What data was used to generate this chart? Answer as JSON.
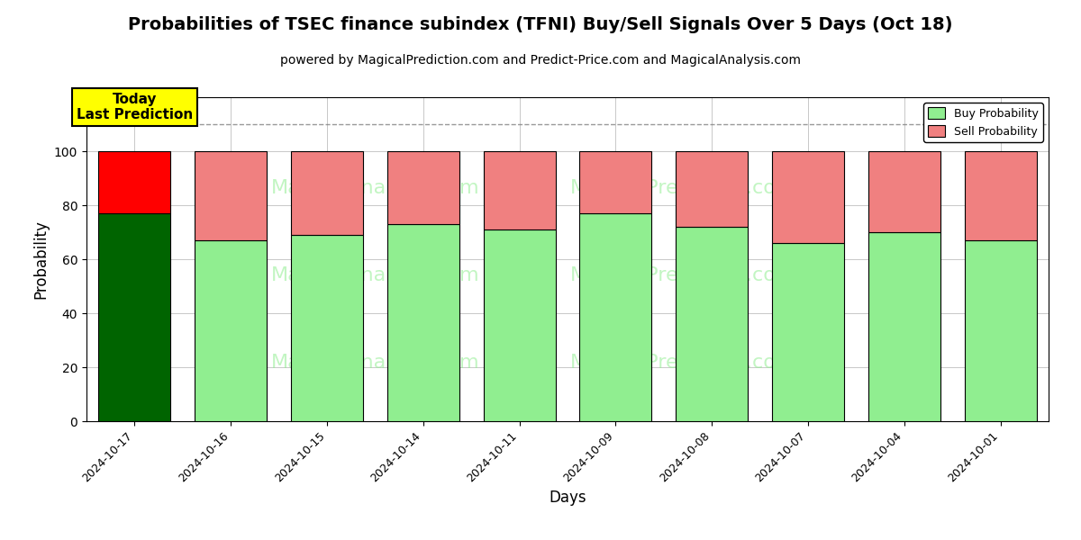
{
  "title": "Probabilities of TSEC finance subindex (TFNI) Buy/Sell Signals Over 5 Days (Oct 18)",
  "subtitle": "powered by MagicalPrediction.com and Predict-Price.com and MagicalAnalysis.com",
  "xlabel": "Days",
  "ylabel": "Probability",
  "categories": [
    "2024-10-17",
    "2024-10-16",
    "2024-10-15",
    "2024-10-14",
    "2024-10-11",
    "2024-10-09",
    "2024-10-08",
    "2024-10-07",
    "2024-10-04",
    "2024-10-01"
  ],
  "buy_values": [
    77,
    67,
    69,
    73,
    71,
    77,
    72,
    66,
    70,
    67
  ],
  "sell_values": [
    23,
    33,
    31,
    27,
    29,
    23,
    28,
    34,
    30,
    33
  ],
  "today_buy_color": "#006400",
  "today_sell_color": "#FF0000",
  "buy_color": "#90EE90",
  "sell_color": "#F08080",
  "bar_edge_color": "#000000",
  "today_annotation_bg": "#FFFF00",
  "today_annotation_text": "Today\nLast Prediction",
  "ylim": [
    0,
    120
  ],
  "yticks": [
    0,
    20,
    40,
    60,
    80,
    100
  ],
  "dashed_line_y": 110,
  "legend_buy_label": "Buy Probability",
  "legend_sell_label": "Sell Probability",
  "background_color": "#ffffff",
  "title_fontsize": 14,
  "subtitle_fontsize": 10,
  "bar_width": 0.75
}
